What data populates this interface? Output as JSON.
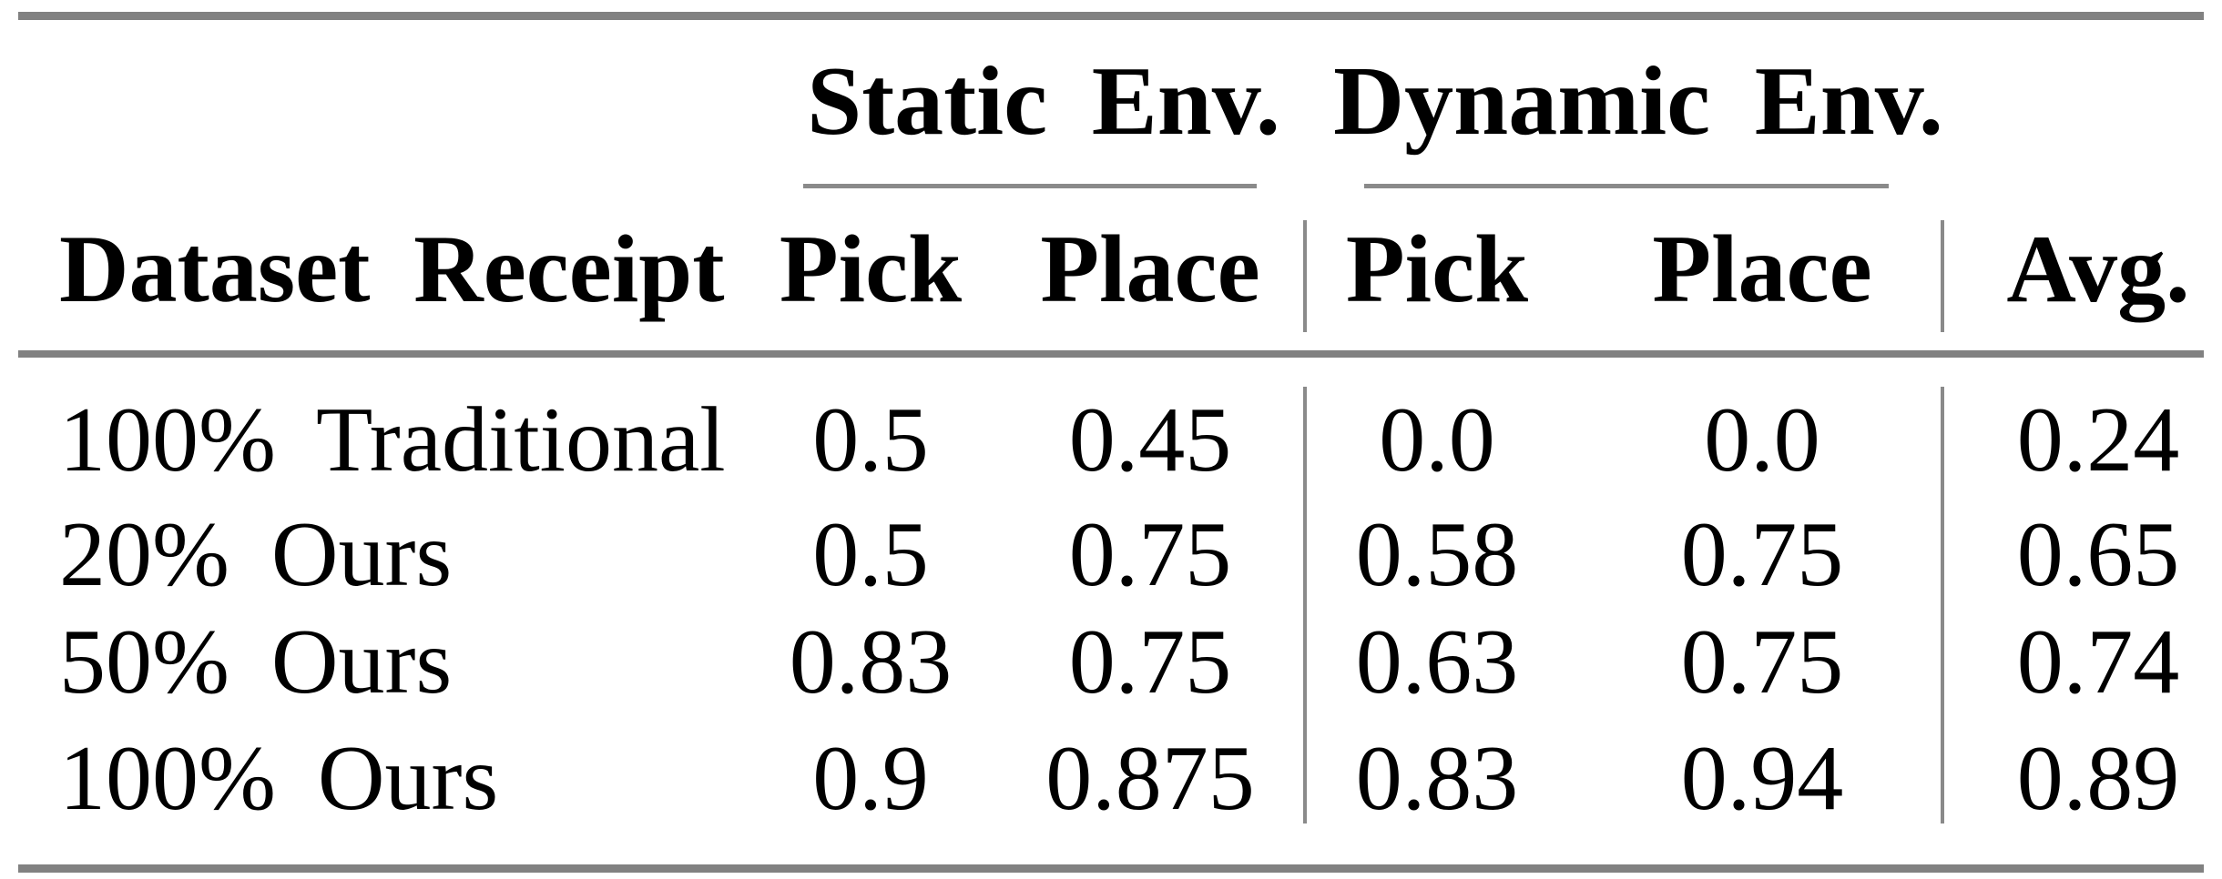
{
  "page": {
    "background": "#ffffff",
    "text_color": "#000000",
    "rule_color": "#818181"
  },
  "table": {
    "column_groups": [
      {
        "label": "Static Env."
      },
      {
        "label": "Dynamic Env."
      }
    ],
    "headers": {
      "dataset": "Dataset Receipt",
      "static_pick": "Pick",
      "static_place": "Place",
      "dynamic_pick": "Pick",
      "dynamic_place": "Place",
      "avg": "Avg."
    },
    "rows": [
      {
        "dataset": "100% Traditional",
        "static_pick": "0.5",
        "static_place": "0.45",
        "dynamic_pick": "0.0",
        "dynamic_place": "0.0",
        "avg": "0.24"
      },
      {
        "dataset": "20% Ours",
        "static_pick": "0.5",
        "static_place": "0.75",
        "dynamic_pick": "0.58",
        "dynamic_place": "0.75",
        "avg": "0.65"
      },
      {
        "dataset": "50% Ours",
        "static_pick": "0.83",
        "static_place": "0.75",
        "dynamic_pick": "0.63",
        "dynamic_place": "0.75",
        "avg": "0.74"
      },
      {
        "dataset": "100% Ours",
        "static_pick": "0.9",
        "static_place": "0.875",
        "dynamic_pick": "0.83",
        "dynamic_place": "0.94",
        "avg": "0.89"
      }
    ]
  }
}
